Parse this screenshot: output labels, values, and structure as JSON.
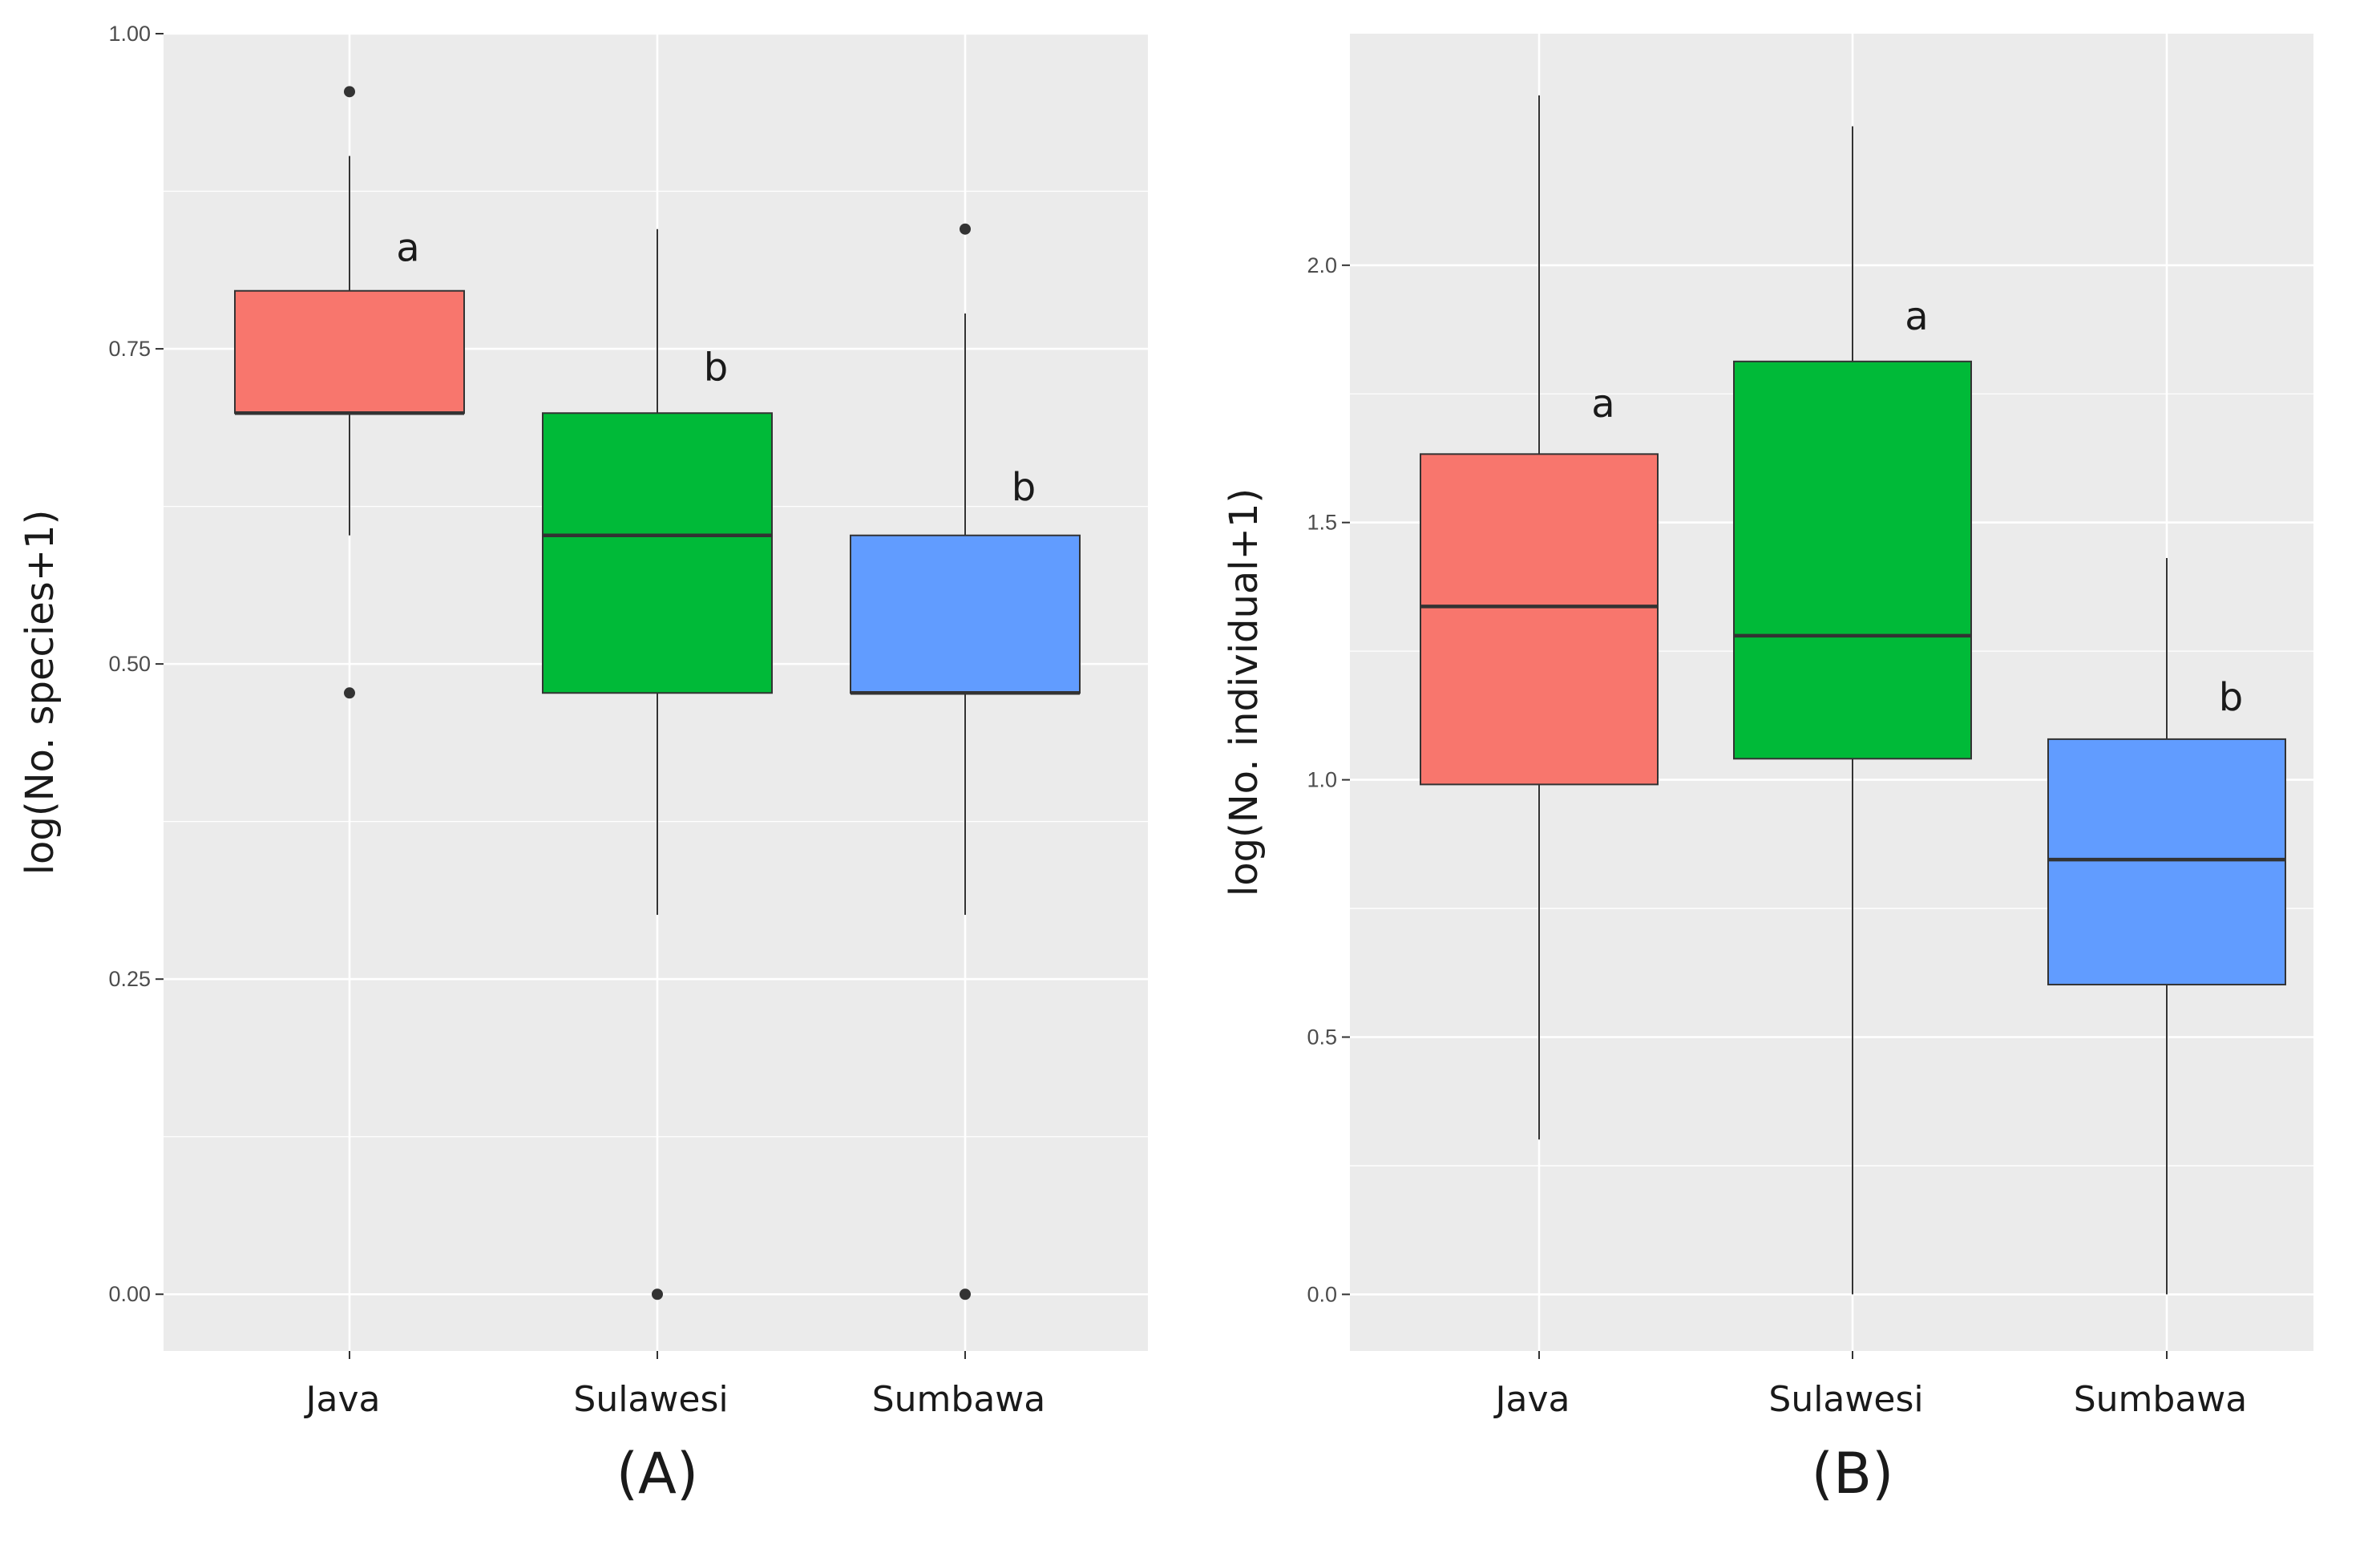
{
  "chart_data": [
    {
      "type": "boxplot",
      "panel_label": "(A)",
      "ylabel": "log(No. species+1)",
      "ylim": [
        -0.045,
        1.0
      ],
      "yticks": [
        0.0,
        0.25,
        0.5,
        0.75,
        1.0
      ],
      "ytick_labels": [
        "0.00",
        "0.25",
        "0.50",
        "0.75",
        "1.00"
      ],
      "categories": [
        "Java",
        "Sulawesi",
        "Sumbawa"
      ],
      "colors": [
        "#f8766d",
        "#00ba38",
        "#619cff"
      ],
      "boxes": [
        {
          "category": "Java",
          "whisker_low": 0.602,
          "q1": 0.699,
          "median": 0.699,
          "q3": 0.796,
          "whisker_high": 0.903,
          "outliers": [
            0.954,
            0.477
          ],
          "letter": "a"
        },
        {
          "category": "Sulawesi",
          "whisker_low": 0.301,
          "q1": 0.477,
          "median": 0.602,
          "q3": 0.699,
          "whisker_high": 0.845,
          "outliers": [
            0.0
          ],
          "letter": "b"
        },
        {
          "category": "Sumbawa",
          "whisker_low": 0.301,
          "q1": 0.477,
          "median": 0.477,
          "q3": 0.602,
          "whisker_high": 0.778,
          "outliers": [
            0.845,
            0.0
          ],
          "letter": "b"
        }
      ]
    },
    {
      "type": "boxplot",
      "panel_label": "(B)",
      "ylabel": "log(No. individual+1)",
      "ylim": [
        -0.11,
        2.45
      ],
      "yticks": [
        0.0,
        0.5,
        1.0,
        1.5,
        2.0
      ],
      "ytick_labels": [
        "0.0",
        "0.5",
        "1.0",
        "1.5",
        "2.0"
      ],
      "categories": [
        "Java",
        "Sulawesi",
        "Sumbawa"
      ],
      "colors": [
        "#f8766d",
        "#00ba38",
        "#619cff"
      ],
      "boxes": [
        {
          "category": "Java",
          "whisker_low": 0.301,
          "q1": 0.991,
          "median": 1.337,
          "q3": 1.633,
          "whisker_high": 2.33,
          "outliers": [],
          "letter": "a"
        },
        {
          "category": "Sulawesi",
          "whisker_low": 0.0,
          "q1": 1.041,
          "median": 1.28,
          "q3": 1.813,
          "whisker_high": 2.27,
          "outliers": [],
          "letter": "a"
        },
        {
          "category": "Sumbawa",
          "whisker_low": 0.0,
          "q1": 0.602,
          "median": 0.845,
          "q3": 1.079,
          "whisker_high": 1.431,
          "outliers": [],
          "letter": "b"
        }
      ]
    }
  ],
  "style": {
    "panel_background": "#ebebeb",
    "grid_color": "#ffffff",
    "line_color": "#333333",
    "box_outline": "#333333"
  }
}
